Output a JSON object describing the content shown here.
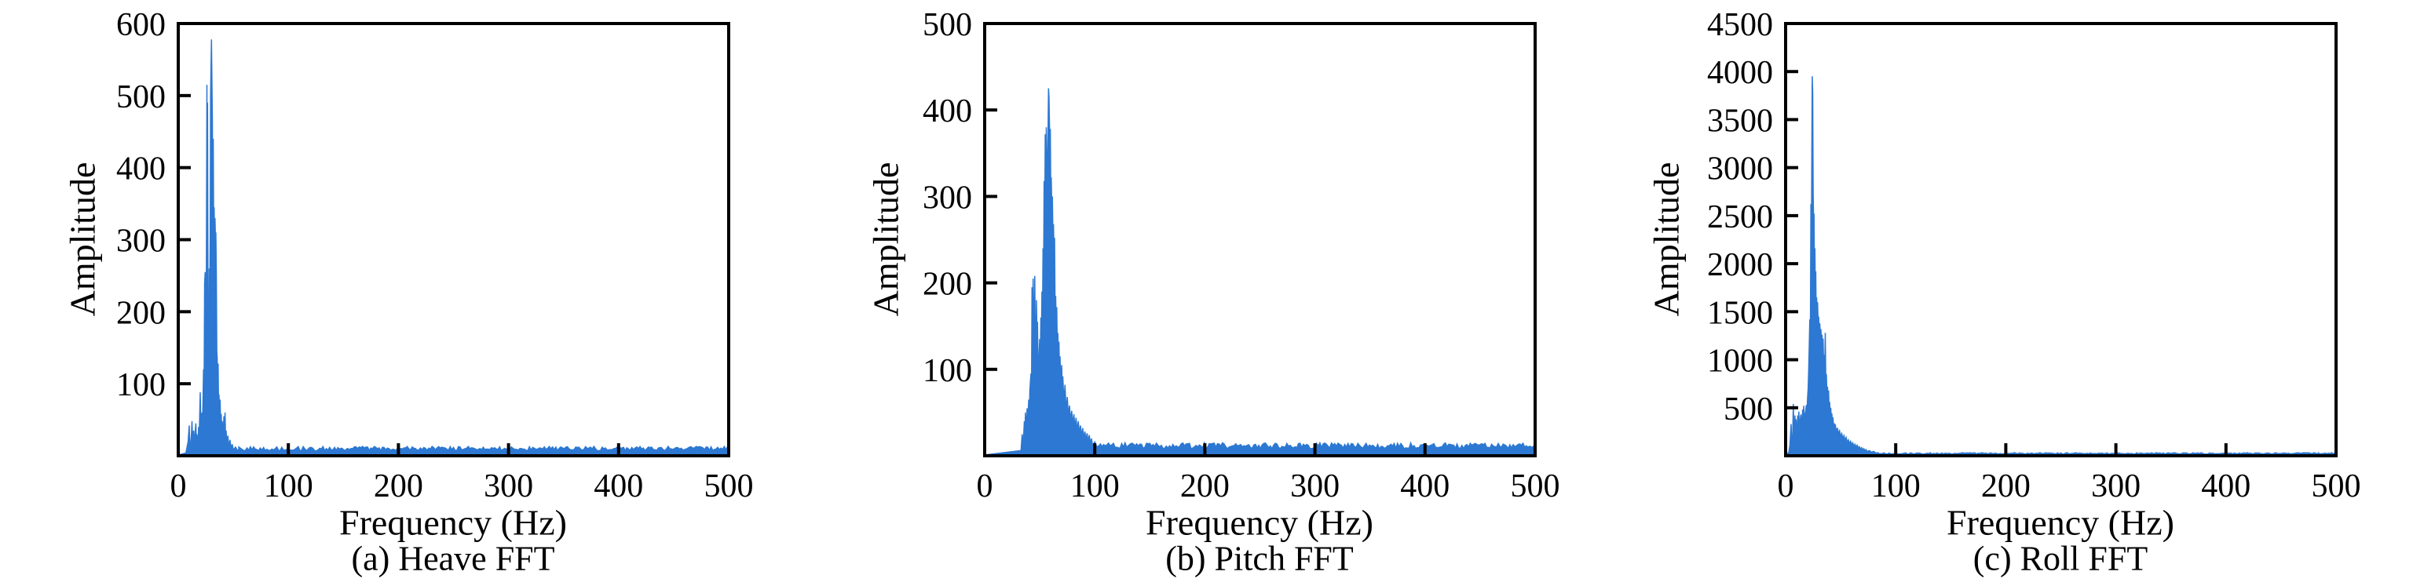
{
  "figure": {
    "background": "#ffffff",
    "accent_blue": "#2D78D2",
    "axis_color": "#000000"
  },
  "chart_data": [
    {
      "type": "area",
      "id": "heave",
      "caption": "(a) Heave FFT",
      "xlabel": "Frequency (Hz)",
      "ylabel": "Amplitude",
      "xlim": [
        0,
        500
      ],
      "ylim": [
        0,
        600
      ],
      "x_ticks": [
        0,
        100,
        200,
        300,
        400,
        500
      ],
      "y_ticks": [
        100,
        200,
        300,
        400,
        500,
        600
      ],
      "legend": "none",
      "grid": false,
      "peak": {
        "frequency_hz": 30,
        "amplitude": 578
      },
      "points": [
        [
          0,
          1
        ],
        [
          7,
          4
        ],
        [
          9,
          20
        ],
        [
          10,
          42
        ],
        [
          10.5,
          15
        ],
        [
          11,
          8
        ],
        [
          12,
          30
        ],
        [
          12.5,
          48
        ],
        [
          13,
          22
        ],
        [
          14,
          35
        ],
        [
          14.5,
          12
        ],
        [
          15,
          25
        ],
        [
          16,
          45
        ],
        [
          16.5,
          18
        ],
        [
          17,
          30
        ],
        [
          18,
          12
        ],
        [
          18.5,
          40
        ],
        [
          19,
          22
        ],
        [
          20,
          88
        ],
        [
          20.5,
          45
        ],
        [
          21,
          30
        ],
        [
          21.5,
          60
        ],
        [
          22,
          35
        ],
        [
          22.5,
          75
        ],
        [
          23,
          120
        ],
        [
          23.5,
          95
        ],
        [
          24,
          240
        ],
        [
          24.5,
          255
        ],
        [
          25,
          150
        ],
        [
          25.5,
          245
        ],
        [
          26,
          515
        ],
        [
          26.3,
          350
        ],
        [
          26.6,
          490
        ],
        [
          27,
          210
        ],
        [
          27.4,
          150
        ],
        [
          27.8,
          95
        ],
        [
          28.2,
          260
        ],
        [
          28.6,
          210
        ],
        [
          29,
          305
        ],
        [
          29.4,
          500
        ],
        [
          29.8,
          545
        ],
        [
          30.2,
          578
        ],
        [
          30.6,
          520
        ],
        [
          31,
          465
        ],
        [
          31.4,
          300
        ],
        [
          31.8,
          440
        ],
        [
          32.2,
          310
        ],
        [
          32.6,
          345
        ],
        [
          33,
          295
        ],
        [
          33.4,
          330
        ],
        [
          33.8,
          300
        ],
        [
          34.2,
          310
        ],
        [
          34.6,
          255
        ],
        [
          35,
          145
        ],
        [
          35.4,
          135
        ],
        [
          35.8,
          95
        ],
        [
          36.2,
          128
        ],
        [
          36.6,
          70
        ],
        [
          37,
          85
        ],
        [
          37.5,
          55
        ],
        [
          38,
          78
        ],
        [
          38.5,
          42
        ],
        [
          39,
          58
        ],
        [
          39.5,
          30
        ],
        [
          40,
          48
        ],
        [
          40.5,
          22
        ],
        [
          41,
          38
        ],
        [
          41.5,
          55
        ],
        [
          42,
          28
        ],
        [
          42.5,
          60
        ],
        [
          43,
          20
        ],
        [
          43.5,
          35
        ],
        [
          44,
          15
        ],
        [
          45,
          28
        ],
        [
          46,
          12
        ],
        [
          47,
          22
        ],
        [
          48,
          10
        ],
        [
          49,
          16
        ],
        [
          50,
          8
        ],
        [
          52,
          12
        ],
        [
          54,
          7
        ],
        [
          55,
          9
        ]
      ],
      "noise_floor": {
        "start_hz": 55,
        "end_hz": 500,
        "base": 7,
        "jitter": 6
      }
    },
    {
      "type": "area",
      "id": "pitch",
      "caption": "(b) Pitch FFT",
      "xlabel": "Frequency (Hz)",
      "ylabel": "Amplitude",
      "xlim": [
        0,
        500
      ],
      "ylim": [
        0,
        500
      ],
      "x_ticks": [
        0,
        100,
        200,
        300,
        400,
        500
      ],
      "y_ticks": [
        100,
        200,
        300,
        400,
        500
      ],
      "legend": "none",
      "grid": false,
      "peak": {
        "frequency_hz": 58,
        "amplitude": 425
      },
      "points": [
        [
          0,
          1
        ],
        [
          33,
          6
        ],
        [
          34,
          25
        ],
        [
          35,
          12
        ],
        [
          36,
          40
        ],
        [
          36.5,
          18
        ],
        [
          37,
          50
        ],
        [
          38,
          28
        ],
        [
          38.5,
          55
        ],
        [
          39,
          35
        ],
        [
          40,
          65
        ],
        [
          40.5,
          40
        ],
        [
          41,
          75
        ],
        [
          42,
          95
        ],
        [
          42.5,
          60
        ],
        [
          43,
          195
        ],
        [
          43.5,
          145
        ],
        [
          44,
          205
        ],
        [
          44.5,
          120
        ],
        [
          45,
          165
        ],
        [
          45.5,
          208
        ],
        [
          46,
          125
        ],
        [
          46.5,
          95
        ],
        [
          47,
          180
        ],
        [
          47.5,
          140
        ],
        [
          48,
          155
        ],
        [
          48.5,
          100
        ],
        [
          49,
          85
        ],
        [
          49.5,
          120
        ],
        [
          50,
          135
        ],
        [
          50.5,
          100
        ],
        [
          51,
          160
        ],
        [
          51.5,
          130
        ],
        [
          52,
          190
        ],
        [
          52.5,
          150
        ],
        [
          53,
          240
        ],
        [
          53.5,
          200
        ],
        [
          54,
          318
        ],
        [
          54.5,
          250
        ],
        [
          55,
          372
        ],
        [
          55.5,
          300
        ],
        [
          56,
          380
        ],
        [
          56.5,
          330
        ],
        [
          57,
          320
        ],
        [
          57.5,
          365
        ],
        [
          58,
          425
        ],
        [
          58.4,
          415
        ],
        [
          58.8,
          390
        ],
        [
          59.2,
          360
        ],
        [
          59.6,
          378
        ],
        [
          60,
          310
        ],
        [
          60.5,
          322
        ],
        [
          61,
          285
        ],
        [
          61.5,
          300
        ],
        [
          62,
          255
        ],
        [
          62.5,
          268
        ],
        [
          63,
          235
        ],
        [
          63.5,
          252
        ],
        [
          64,
          165
        ],
        [
          64.5,
          185
        ],
        [
          65,
          150
        ],
        [
          65.5,
          172
        ],
        [
          66,
          125
        ],
        [
          66.5,
          142
        ],
        [
          67,
          110
        ],
        [
          67.5,
          132
        ],
        [
          68,
          95
        ],
        [
          68.5,
          115
        ],
        [
          69,
          85
        ],
        [
          70,
          105
        ],
        [
          70.5,
          72
        ],
        [
          71,
          92
        ],
        [
          72,
          62
        ],
        [
          73,
          82
        ],
        [
          74,
          52
        ],
        [
          75,
          68
        ],
        [
          76,
          46
        ],
        [
          77,
          58
        ],
        [
          78,
          40
        ],
        [
          79,
          52
        ],
        [
          80,
          36
        ],
        [
          81,
          48
        ],
        [
          82,
          32
        ],
        [
          83,
          44
        ],
        [
          84,
          28
        ],
        [
          85,
          40
        ],
        [
          86,
          25
        ],
        [
          87,
          35
        ],
        [
          88,
          22
        ],
        [
          89,
          32
        ],
        [
          90,
          20
        ],
        [
          91,
          28
        ],
        [
          92,
          18
        ],
        [
          93,
          26
        ],
        [
          94,
          16
        ],
        [
          95,
          24
        ],
        [
          96,
          14
        ],
        [
          97,
          20
        ],
        [
          98,
          12
        ],
        [
          100,
          16
        ],
        [
          102,
          10
        ],
        [
          104,
          12
        ],
        [
          105,
          8
        ]
      ],
      "noise_floor": {
        "start_hz": 105,
        "end_hz": 500,
        "base": 8,
        "jitter": 7
      }
    },
    {
      "type": "area",
      "id": "roll",
      "caption": "(c) Roll FFT",
      "xlabel": "Frequency (Hz)",
      "ylabel": "Amplitude",
      "xlim": [
        0,
        500
      ],
      "ylim": [
        0,
        4500
      ],
      "x_ticks": [
        0,
        100,
        200,
        300,
        400,
        500
      ],
      "y_ticks": [
        500,
        1000,
        1500,
        2000,
        2500,
        3000,
        3500,
        4000,
        4500
      ],
      "legend": "none",
      "grid": false,
      "peak": {
        "frequency_hz": 24,
        "amplitude": 3950
      },
      "points": [
        [
          1,
          10
        ],
        [
          3,
          40
        ],
        [
          4,
          120
        ],
        [
          5,
          330
        ],
        [
          5.5,
          150
        ],
        [
          6,
          90
        ],
        [
          6.5,
          240
        ],
        [
          7,
          540
        ],
        [
          7.5,
          300
        ],
        [
          8,
          200
        ],
        [
          8.5,
          420
        ],
        [
          9,
          260
        ],
        [
          9.5,
          380
        ],
        [
          10,
          180
        ],
        [
          10.5,
          300
        ],
        [
          11,
          420
        ],
        [
          11.5,
          250
        ],
        [
          12,
          460
        ],
        [
          12.5,
          320
        ],
        [
          13,
          280
        ],
        [
          13.5,
          400
        ],
        [
          14,
          430
        ],
        [
          14.5,
          300
        ],
        [
          15,
          350
        ],
        [
          15.5,
          480
        ],
        [
          16,
          400
        ],
        [
          16.5,
          520
        ],
        [
          17,
          380
        ],
        [
          17.5,
          450
        ],
        [
          18,
          420
        ],
        [
          18.5,
          500
        ],
        [
          19,
          530
        ],
        [
          19.5,
          460
        ],
        [
          20,
          610
        ],
        [
          20.5,
          700
        ],
        [
          21,
          900
        ],
        [
          21.5,
          1150
        ],
        [
          22,
          1420
        ],
        [
          22.5,
          1120
        ],
        [
          23,
          2620
        ],
        [
          23.4,
          2100
        ],
        [
          23.8,
          3200
        ],
        [
          24.2,
          3950
        ],
        [
          24.6,
          3780
        ],
        [
          25,
          2720
        ],
        [
          25.4,
          2480
        ],
        [
          25.8,
          2520
        ],
        [
          26.2,
          1850
        ],
        [
          26.6,
          2160
        ],
        [
          27,
          1600
        ],
        [
          27.4,
          1920
        ],
        [
          27.8,
          1350
        ],
        [
          28.2,
          1650
        ],
        [
          28.6,
          1420
        ],
        [
          29,
          1600
        ],
        [
          29.5,
          1380
        ],
        [
          30,
          1450
        ],
        [
          30.5,
          1300
        ],
        [
          31,
          1380
        ],
        [
          31.5,
          1260
        ],
        [
          32,
          1320
        ],
        [
          32.5,
          1200
        ],
        [
          33,
          1260
        ],
        [
          33.5,
          1150
        ],
        [
          34,
          1220
        ],
        [
          34.5,
          950
        ],
        [
          35,
          1050
        ],
        [
          35.5,
          880
        ],
        [
          36,
          1280
        ],
        [
          36.5,
          760
        ],
        [
          37,
          850
        ],
        [
          37.5,
          640
        ],
        [
          38,
          720
        ],
        [
          38.5,
          560
        ],
        [
          39,
          680
        ],
        [
          39.5,
          480
        ],
        [
          40,
          560
        ],
        [
          40.5,
          420
        ],
        [
          41,
          500
        ],
        [
          41.5,
          380
        ],
        [
          42,
          440
        ],
        [
          42.5,
          330
        ],
        [
          43,
          400
        ],
        [
          43.5,
          300
        ],
        [
          44,
          340
        ],
        [
          44.5,
          270
        ],
        [
          45,
          330
        ],
        [
          46,
          250
        ],
        [
          47,
          290
        ],
        [
          48,
          230
        ],
        [
          49,
          260
        ],
        [
          50,
          200
        ],
        [
          51,
          230
        ],
        [
          52,
          180
        ],
        [
          53,
          210
        ],
        [
          54,
          160
        ],
        [
          55,
          190
        ],
        [
          56,
          140
        ],
        [
          57,
          165
        ],
        [
          58,
          125
        ],
        [
          59,
          150
        ],
        [
          60,
          115
        ],
        [
          61,
          135
        ],
        [
          62,
          100
        ],
        [
          63,
          120
        ],
        [
          64,
          90
        ],
        [
          65,
          110
        ],
        [
          66,
          80
        ],
        [
          67,
          95
        ],
        [
          68,
          70
        ],
        [
          69,
          85
        ],
        [
          70,
          60
        ],
        [
          71,
          75
        ],
        [
          72,
          52
        ],
        [
          73,
          65
        ],
        [
          74,
          45
        ],
        [
          76,
          55
        ],
        [
          78,
          38
        ],
        [
          80,
          45
        ],
        [
          82,
          28
        ],
        [
          84,
          32
        ],
        [
          85,
          22
        ]
      ],
      "noise_floor": {
        "start_hz": 85,
        "end_hz": 500,
        "base": 18,
        "jitter": 14
      }
    }
  ]
}
